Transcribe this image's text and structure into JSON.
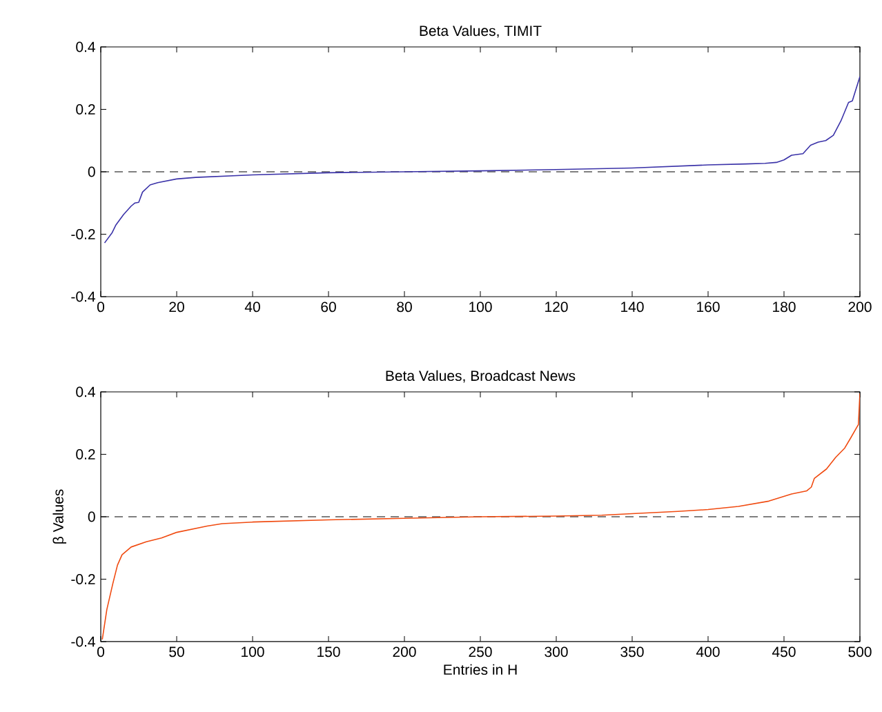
{
  "chart_data": [
    {
      "type": "line",
      "title": "Beta Values, TIMIT",
      "xlim": [
        0,
        200
      ],
      "ylim": [
        -0.4,
        0.4
      ],
      "xticks": [
        0,
        20,
        40,
        60,
        80,
        100,
        120,
        140,
        160,
        180,
        200
      ],
      "yticks": [
        -0.4,
        -0.2,
        0,
        0.2,
        0.4
      ],
      "ref_lines": [
        {
          "axis": "y",
          "value": 0,
          "color": "#000000",
          "line_style": "dashed"
        }
      ],
      "series": [
        {
          "color": "#3a32a8",
          "x": [
            1,
            3,
            4,
            6,
            8,
            9,
            10,
            11,
            13,
            15,
            20,
            25,
            40,
            60,
            80,
            100,
            120,
            140,
            160,
            170,
            175,
            178,
            180,
            182,
            185,
            187,
            189,
            191,
            193,
            195,
            197,
            198,
            200
          ],
          "values": [
            -0.228,
            -0.195,
            -0.17,
            -0.137,
            -0.11,
            -0.1,
            -0.098,
            -0.065,
            -0.042,
            -0.035,
            -0.023,
            -0.018,
            -0.01,
            -0.003,
            0,
            0.003,
            0.007,
            0.012,
            0.022,
            0.025,
            0.027,
            0.03,
            0.038,
            0.053,
            0.058,
            0.085,
            0.095,
            0.1,
            0.117,
            0.163,
            0.222,
            0.227,
            0.305
          ]
        }
      ]
    },
    {
      "type": "line",
      "title": "Beta Values,  Broadcast News",
      "xlabel": "Entries in H",
      "ylabel": "β Values",
      "xlim": [
        0,
        500
      ],
      "ylim": [
        -0.4,
        0.4
      ],
      "xticks": [
        0,
        50,
        100,
        150,
        200,
        250,
        300,
        350,
        400,
        450,
        500
      ],
      "yticks": [
        -0.4,
        -0.2,
        0,
        0.2,
        0.4
      ],
      "ref_lines": [
        {
          "axis": "y",
          "value": 0,
          "color": "#000000",
          "line_style": "dashed"
        }
      ],
      "series": [
        {
          "color": "#f04a10",
          "x": [
            1,
            4,
            8,
            11,
            14,
            20,
            30,
            40,
            50,
            70,
            80,
            100,
            150,
            200,
            250,
            300,
            330,
            350,
            380,
            400,
            420,
            440,
            455,
            465,
            468,
            470,
            478,
            484,
            490,
            494,
            498,
            499,
            500
          ],
          "values": [
            -0.393,
            -0.297,
            -0.213,
            -0.155,
            -0.122,
            -0.097,
            -0.08,
            -0.068,
            -0.05,
            -0.03,
            -0.022,
            -0.017,
            -0.01,
            -0.005,
            0,
            0.002,
            0.005,
            0.01,
            0.017,
            0.023,
            0.033,
            0.05,
            0.073,
            0.083,
            0.095,
            0.123,
            0.153,
            0.19,
            0.22,
            0.253,
            0.287,
            0.295,
            0.395
          ]
        }
      ]
    }
  ]
}
